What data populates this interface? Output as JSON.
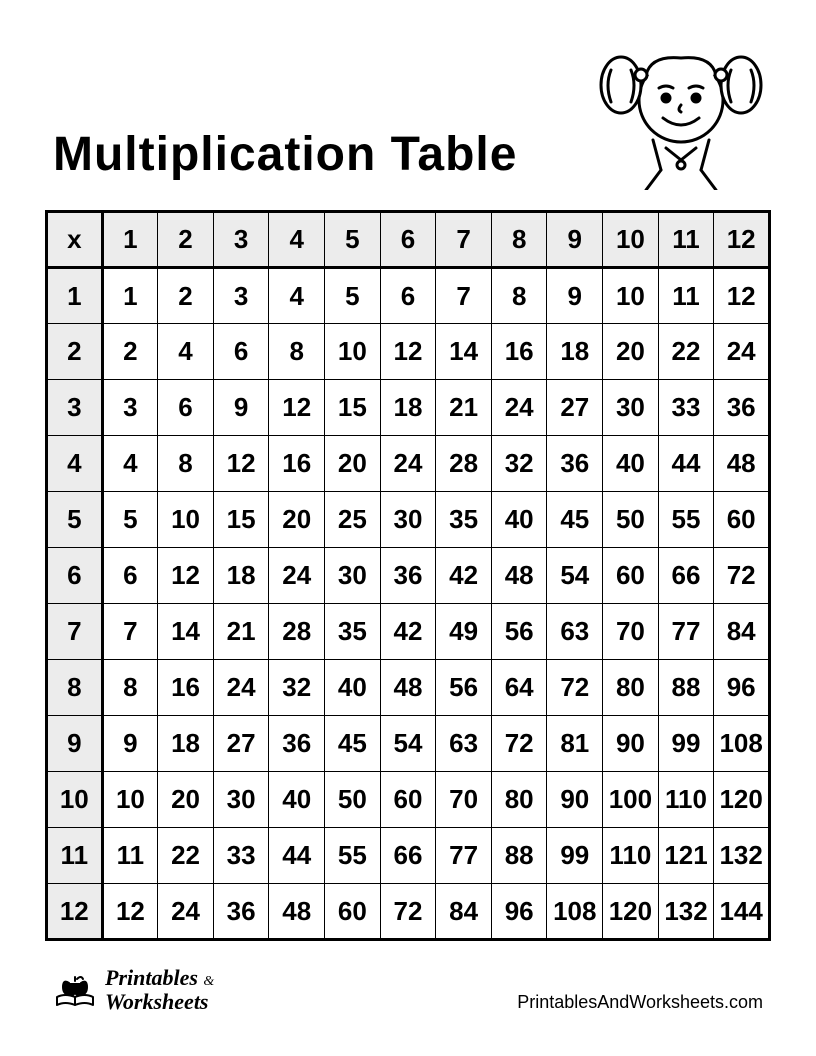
{
  "title": "Multiplication Table",
  "table": {
    "corner_label": "x",
    "col_headers": [
      "1",
      "2",
      "3",
      "4",
      "5",
      "6",
      "7",
      "8",
      "9",
      "10",
      "11",
      "12"
    ],
    "row_headers": [
      "1",
      "2",
      "3",
      "4",
      "5",
      "6",
      "7",
      "8",
      "9",
      "10",
      "11",
      "12"
    ],
    "rows": [
      [
        "1",
        "2",
        "3",
        "4",
        "5",
        "6",
        "7",
        "8",
        "9",
        "10",
        "11",
        "12"
      ],
      [
        "2",
        "4",
        "6",
        "8",
        "10",
        "12",
        "14",
        "16",
        "18",
        "20",
        "22",
        "24"
      ],
      [
        "3",
        "6",
        "9",
        "12",
        "15",
        "18",
        "21",
        "24",
        "27",
        "30",
        "33",
        "36"
      ],
      [
        "4",
        "8",
        "12",
        "16",
        "20",
        "24",
        "28",
        "32",
        "36",
        "40",
        "44",
        "48"
      ],
      [
        "5",
        "10",
        "15",
        "20",
        "25",
        "30",
        "35",
        "40",
        "45",
        "50",
        "55",
        "60"
      ],
      [
        "6",
        "12",
        "18",
        "24",
        "30",
        "36",
        "42",
        "48",
        "54",
        "60",
        "66",
        "72"
      ],
      [
        "7",
        "14",
        "21",
        "28",
        "35",
        "42",
        "49",
        "56",
        "63",
        "70",
        "77",
        "84"
      ],
      [
        "8",
        "16",
        "24",
        "32",
        "40",
        "48",
        "56",
        "64",
        "72",
        "80",
        "88",
        "96"
      ],
      [
        "9",
        "18",
        "27",
        "36",
        "45",
        "54",
        "63",
        "72",
        "81",
        "90",
        "99",
        "108"
      ],
      [
        "10",
        "20",
        "30",
        "40",
        "50",
        "60",
        "70",
        "80",
        "90",
        "100",
        "110",
        "120"
      ],
      [
        "11",
        "22",
        "33",
        "44",
        "55",
        "66",
        "77",
        "88",
        "99",
        "110",
        "121",
        "132"
      ],
      [
        "12",
        "24",
        "36",
        "48",
        "60",
        "72",
        "84",
        "96",
        "108",
        "120",
        "132",
        "144"
      ]
    ],
    "header_bg": "#ececec",
    "border_color": "#000000",
    "cell_font_size": 26,
    "cell_font_weight": "bold"
  },
  "footer": {
    "brand_line1": "Printables",
    "brand_amp": "&",
    "brand_line2": "Worksheets",
    "url": "PrintablesAndWorksheets.com"
  },
  "illustration": {
    "name": "girl-with-pigtails"
  }
}
